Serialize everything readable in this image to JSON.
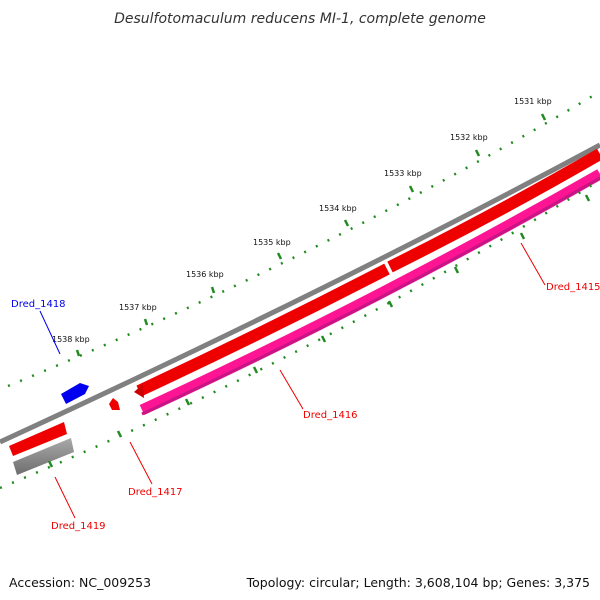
{
  "title": "Desulfotomaculum reducens MI-1, complete genome",
  "accession": "Accession: NC_009253",
  "summary": "Topology: circular; Length: 3,608,104 bp; Genes: 3,375",
  "scale_labels": [
    "1531 kbp",
    "1532 kbp",
    "1533 kbp",
    "1534 kbp",
    "1535 kbp",
    "1536 kbp",
    "1537 kbp",
    "1538 kbp"
  ],
  "genes": [
    {
      "name": "Dred_1415",
      "color": "#cc0000",
      "strand": "reverse",
      "type": "CDS"
    },
    {
      "name": "Dred_1416",
      "color": "#cc0000",
      "strand": "reverse",
      "type": "CDS"
    },
    {
      "name": "Dred_1417",
      "color": "#cc0000",
      "strand": "forward",
      "type": "CDS"
    },
    {
      "name": "Dred_1418",
      "color": "#0000cc",
      "strand": "forward",
      "type": "CDS"
    },
    {
      "name": "Dred_1419",
      "color": "#cc0000",
      "strand": "reverse",
      "type": "CDS"
    }
  ],
  "colors": {
    "cds_forward": "#ff0000",
    "cds_reverse": "#ff0000",
    "rna": "#0000ff",
    "cog_track": "#ff1493",
    "backbone": "#808080",
    "ticks": "#228b22"
  }
}
